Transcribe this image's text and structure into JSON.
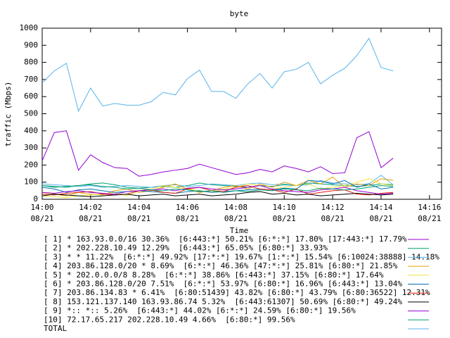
{
  "chart_data": {
    "type": "line",
    "title": "byte",
    "xlabel": "Time",
    "ylabel": "traffic (Mbps)",
    "x": [
      0,
      0.5,
      1,
      1.5,
      2,
      2.5,
      3,
      3.5,
      4,
      4.5,
      5,
      5.5,
      6,
      6.5,
      7,
      7.5,
      8,
      8.5,
      9,
      9.5,
      10,
      10.5,
      11,
      11.5,
      12,
      12.5,
      13,
      13.5,
      14,
      14.5
    ],
    "xlim": [
      0,
      16.5
    ],
    "xticks": [
      {
        "value": 0,
        "label": "14:00 08/21"
      },
      {
        "value": 2,
        "label": "14:02 08/21"
      },
      {
        "value": 4,
        "label": "14:04 08/21"
      },
      {
        "value": 6,
        "label": "14:06 08/21"
      },
      {
        "value": 8,
        "label": "14:08 08/21"
      },
      {
        "value": 10,
        "label": "14:10 08/21"
      },
      {
        "value": 12,
        "label": "14:12 08/21"
      },
      {
        "value": 14,
        "label": "14:14 08/21"
      },
      {
        "value": 16,
        "label": "14:16 08/21"
      }
    ],
    "ylim": [
      0,
      1000
    ],
    "yticks": [
      0,
      100,
      200,
      300,
      400,
      500,
      600,
      700,
      800,
      900,
      1000
    ],
    "series": [
      {
        "name": "[ 1] * 163.93.0.0/16 30.36%  [6:443:*] 50.21% [6:*:*] 17.80% [17:443:*] 17.79%",
        "color": "#9400d3",
        "values": [
          225,
          390,
          400,
          170,
          260,
          215,
          185,
          180,
          135,
          145,
          160,
          170,
          180,
          205,
          185,
          165,
          145,
          155,
          175,
          160,
          195,
          180,
          160,
          190,
          150,
          155,
          360,
          395,
          185,
          240
        ]
      },
      {
        "name": "[ 2] * 202.228.10.49 12.29%  [6:443:*] 65.05% [6:80:*] 33.93%",
        "color": "#009e73",
        "values": [
          80,
          70,
          75,
          80,
          90,
          95,
          85,
          70,
          65,
          70,
          75,
          70,
          80,
          95,
          85,
          80,
          75,
          70,
          80,
          75,
          85,
          80,
          95,
          90,
          85,
          80,
          75,
          80,
          90,
          85
        ]
      },
      {
        "name": "[ 3] * * 11.22%  [6:*:*] 49.92% [17:*:*] 19.67% [1:*:*] 15.54% [6:10024:38888] 14.18%",
        "color": "#56b4e9",
        "values": [
          90,
          85,
          80,
          75,
          80,
          70,
          75,
          80,
          75,
          70,
          80,
          85,
          75,
          80,
          90,
          85,
          80,
          90,
          95,
          85,
          90,
          80,
          85,
          110,
          95,
          90,
          85,
          90,
          140,
          85
        ]
      },
      {
        "name": "[ 4] 203.86.128.0/20 * 8.69%  [6:*:*] 46.36% [47:*:*] 25.81% [6:80:*] 21.85%",
        "color": "#e69f00",
        "values": [
          40,
          30,
          20,
          40,
          30,
          25,
          50,
          60,
          40,
          50,
          70,
          90,
          60,
          40,
          50,
          70,
          80,
          60,
          90,
          70,
          100,
          80,
          110,
          90,
          130,
          70,
          90,
          80,
          120,
          110
        ]
      },
      {
        "name": "[ 5] * 202.0.0.0/8 8.28%  [6:*:*] 38.86% [6:443:*] 37.15% [6:80:*] 17.64%",
        "color": "#f0e442",
        "values": [
          20,
          15,
          10,
          20,
          25,
          30,
          40,
          20,
          50,
          60,
          80,
          70,
          60,
          50,
          40,
          60,
          70,
          90,
          80,
          60,
          70,
          80,
          90,
          60,
          70,
          80,
          100,
          120,
          90,
          80
        ]
      },
      {
        "name": "[ 6] * 203.86.128.0/20 7.51%  [6:*:*] 53.97% [6:80:*] 16.96% [6:443:*] 13.04%",
        "color": "#0072b2",
        "values": [
          70,
          60,
          40,
          55,
          60,
          50,
          40,
          45,
          50,
          45,
          40,
          35,
          45,
          50,
          40,
          45,
          50,
          55,
          60,
          55,
          65,
          60,
          110,
          105,
          90,
          110,
          70,
          90,
          60,
          70
        ]
      },
      {
        "name": "[ 7] 203.86.134.83 * 6.41%  [6:80:51439] 43.82% [6:80:*] 43.79% [6:80:36522] 12.31%",
        "color": "#e51e10",
        "values": [
          30,
          25,
          35,
          40,
          45,
          30,
          25,
          30,
          50,
          55,
          40,
          35,
          60,
          70,
          50,
          45,
          70,
          80,
          60,
          55,
          40,
          60,
          30,
          40,
          50,
          55,
          30,
          25,
          35,
          40
        ]
      },
      {
        "name": "[ 8] 153.121.137.140 163.93.86.74 5.32%  [6:443:61307] 50.69% [6:80:*] 49.24%",
        "color": "#000000",
        "values": [
          20,
          30,
          25,
          20,
          15,
          20,
          25,
          30,
          20,
          25,
          30,
          20,
          25,
          30,
          20,
          25,
          30,
          40,
          45,
          30,
          35,
          25,
          30,
          20,
          25,
          30,
          35,
          30,
          25,
          30
        ]
      },
      {
        "name": "[ 9] *:: *:: 5.26%  [6:443:*] 44.02% [6:*:*] 24.59% [6:80:*] 19.56%",
        "color": "#9400d3",
        "values": [
          40,
          35,
          45,
          50,
          40,
          35,
          30,
          45,
          50,
          55,
          60,
          50,
          65,
          70,
          60,
          55,
          60,
          70,
          80,
          60,
          50,
          45,
          40,
          55,
          60,
          70,
          50,
          40,
          30,
          35
        ]
      },
      {
        "name": "[10] 72.17.65.217 202.228.10.49 4.66%  [6:80:*] 99.56%",
        "color": "#009e73",
        "values": [
          80,
          75,
          70,
          80,
          85,
          75,
          70,
          60,
          65,
          55,
          50,
          60,
          55,
          45,
          50,
          40,
          50,
          45,
          55,
          50,
          60,
          55,
          50,
          65,
          60,
          55,
          60,
          70,
          80,
          75
        ]
      },
      {
        "name": "TOTAL",
        "color": "#56b4e9",
        "values": [
          680,
          750,
          795,
          515,
          650,
          545,
          560,
          550,
          550,
          570,
          625,
          610,
          705,
          755,
          630,
          630,
          590,
          675,
          735,
          650,
          745,
          760,
          800,
          675,
          725,
          765,
          840,
          940,
          770,
          750
        ]
      }
    ]
  }
}
